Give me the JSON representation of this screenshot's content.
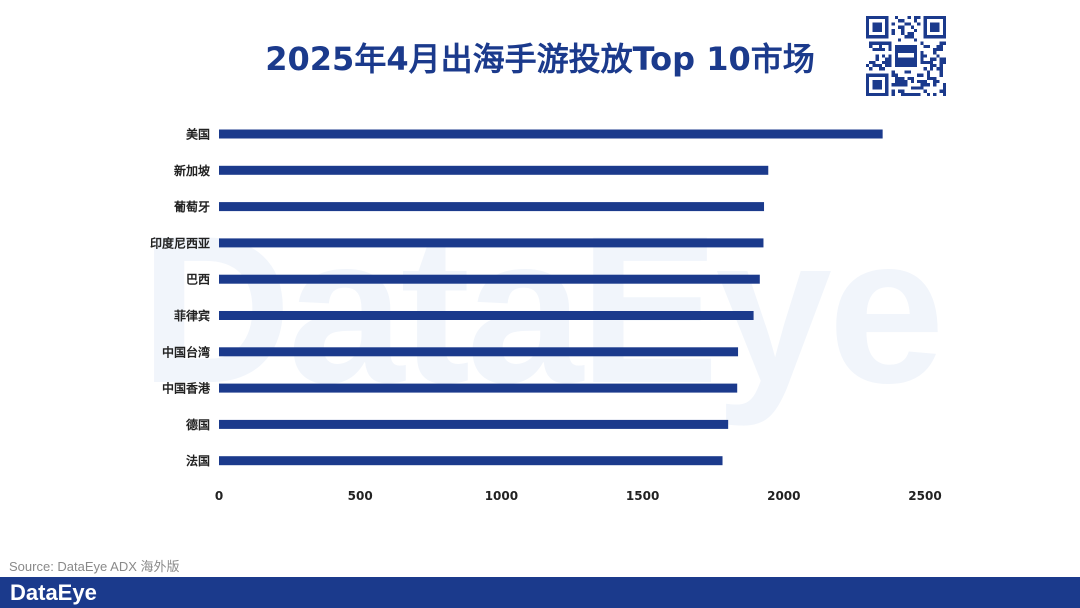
{
  "page": {
    "title": "2025年4月出海手游投放Top 10市场",
    "watermark": "DataEye",
    "source": "Source: DataEye ADX 海外版",
    "footer_logo": "DataEye"
  },
  "colors": {
    "bar": "#1b3a8c",
    "title": "#1b3a8c",
    "footer": "#1b3a8c"
  },
  "icons": {
    "qr": "qr-code-icon"
  },
  "chart_data": {
    "type": "bar",
    "orientation": "horizontal",
    "categories": [
      "美国",
      "新加坡",
      "葡萄牙",
      "印度尼西亚",
      "巴西",
      "菲律宾",
      "中国台湾",
      "中国香港",
      "德国",
      "法国"
    ],
    "values": [
      2350,
      1945,
      1930,
      1928,
      1915,
      1893,
      1838,
      1835,
      1803,
      1783
    ],
    "xlim": [
      0,
      2500
    ],
    "xticks": [
      0,
      500,
      1000,
      1500,
      2000,
      2500
    ],
    "title": "2025年4月出海手游投放Top 10市场",
    "xlabel": "",
    "ylabel": "",
    "grid": false,
    "legend": "none"
  }
}
